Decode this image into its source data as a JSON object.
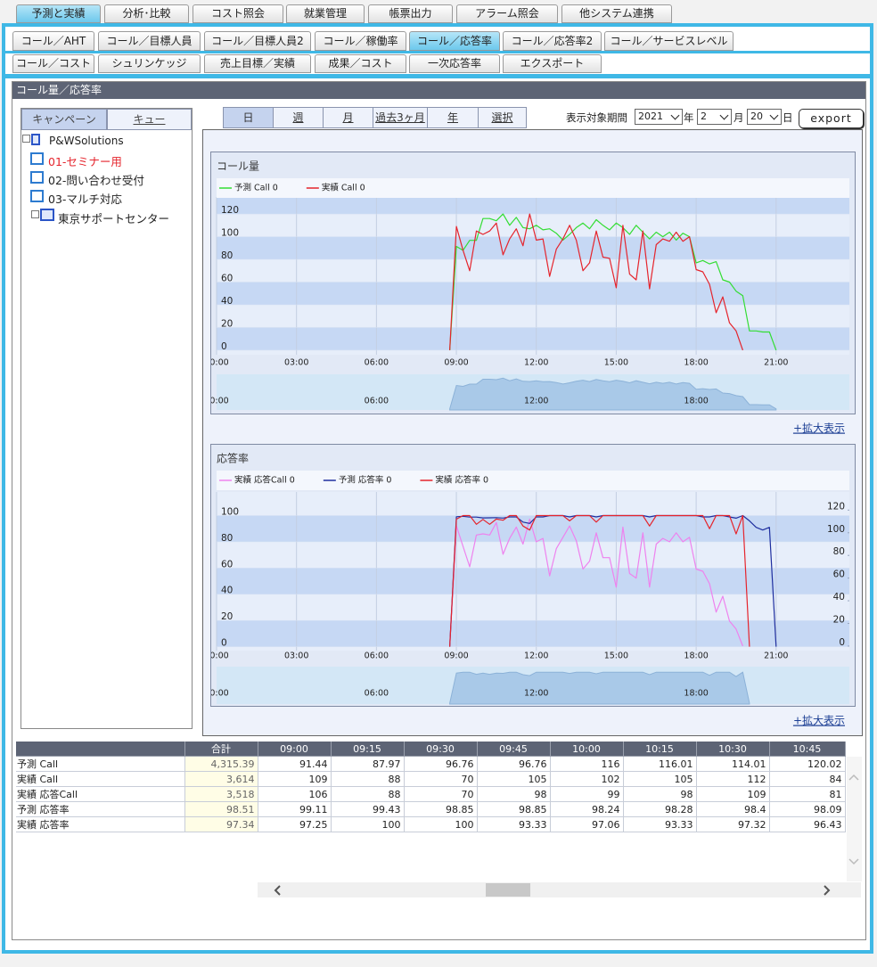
{
  "header": {
    "main_tabs": [
      "予測と実績",
      "分析･比較",
      "コスト照会",
      "就業管理",
      "帳票出力",
      "アラーム照会",
      "他システム連携"
    ],
    "sub_tabs": [
      "コール／AHT",
      "コール／目標人員",
      "コール／目標人員2",
      "コール／稼働率",
      "コール／応答率",
      "コール／応答率2",
      "コール／サービスレベル"
    ],
    "sub_tabs_2": [
      "コール／コスト",
      "シュリンケッジ",
      "売上目標／実績",
      "成果／コスト",
      "一次応答率",
      "エクスポート"
    ]
  },
  "panel": {
    "title": "コール量／応答率",
    "tree_tabs": [
      "キャンペーン",
      "キュー"
    ],
    "tree": {
      "root": "P&WSolutions",
      "items": [
        "01-セミナー用",
        "02-問い合わせ受付",
        "03-マルチ対応"
      ],
      "group": "東京サポートセンター"
    }
  },
  "period": {
    "tabs": [
      "日",
      "週",
      "月",
      "過去3ヶ月",
      "年",
      "選択"
    ],
    "label": "表示対象期間",
    "year": "2021",
    "year_unit": "年",
    "month": "2",
    "month_unit": "月",
    "day": "20",
    "day_unit": "日",
    "export": "export"
  },
  "chart_data": [
    {
      "type": "line",
      "title": "コール量",
      "link": "+拡大表示",
      "grid": true,
      "x": [
        8.75,
        9,
        9.25,
        9.5,
        9.75,
        10,
        10.25,
        10.5,
        10.75,
        11,
        11.25,
        11.5,
        11.75,
        12,
        12.25,
        12.5,
        12.75,
        13,
        13.25,
        13.5,
        13.75,
        14,
        14.25,
        14.5,
        14.75,
        15,
        15.25,
        15.5,
        15.75,
        16,
        16.25,
        16.5,
        16.75,
        17,
        17.25,
        17.5,
        17.75,
        18,
        18.25,
        18.5,
        18.75,
        19,
        19.25,
        19.5,
        19.75,
        20,
        20.25,
        20.5,
        20.75,
        21
      ],
      "xlim": [
        0,
        23.75
      ],
      "xticks": [
        {
          "value": 0,
          "label": "00:00"
        },
        {
          "value": 3,
          "label": "03:00"
        },
        {
          "value": 6,
          "label": "06:00"
        },
        {
          "value": 9,
          "label": "09:00"
        },
        {
          "value": 12,
          "label": "12:00"
        },
        {
          "value": 15,
          "label": "15:00"
        },
        {
          "value": 18,
          "label": "18:00"
        },
        {
          "value": 21,
          "label": "21:00"
        }
      ],
      "navigator_xticks": [
        {
          "value": 0,
          "label": "00:00"
        },
        {
          "value": 6,
          "label": "06:00"
        },
        {
          "value": 12,
          "label": "12:00"
        },
        {
          "value": 18,
          "label": "18:00"
        }
      ],
      "ylim": [
        -4,
        135
      ],
      "yticks": [
        0,
        20,
        40,
        60,
        80,
        100,
        120
      ],
      "series": [
        {
          "name": "予測 Call 0",
          "color": "#33dd33",
          "values": [
            0,
            91.44,
            87.97,
            96.76,
            96.76,
            116,
            116.01,
            114.01,
            120.02,
            110,
            117,
            108,
            107,
            110,
            106,
            107,
            103,
            97,
            102,
            108,
            112,
            107,
            115,
            110,
            106,
            112,
            108,
            102,
            110,
            104,
            98,
            104,
            100,
            104,
            97,
            103,
            100,
            77,
            79,
            76,
            78,
            62,
            60,
            52,
            48,
            17,
            17,
            16,
            16,
            0
          ]
        },
        {
          "name": "実績 Call 0",
          "color": "#e5242c",
          "values": [
            0,
            109,
            88,
            70,
            105,
            102,
            105,
            112,
            84,
            98,
            107,
            92,
            120,
            97,
            98,
            65,
            89,
            98,
            110,
            97,
            70,
            77,
            105,
            82,
            81,
            55,
            110,
            67,
            62,
            105,
            54,
            93,
            98,
            96,
            104,
            96,
            100,
            71,
            69,
            58,
            33,
            47,
            24,
            17,
            0,
            null,
            null,
            null,
            null,
            null
          ]
        }
      ]
    },
    {
      "type": "line",
      "title": "応答率",
      "link": "+拡大表示",
      "grid": true,
      "x": [
        8.75,
        9,
        9.25,
        9.5,
        9.75,
        10,
        10.25,
        10.5,
        10.75,
        11,
        11.25,
        11.5,
        11.75,
        12,
        12.25,
        12.5,
        12.75,
        13,
        13.25,
        13.5,
        13.75,
        14,
        14.25,
        14.5,
        14.75,
        15,
        15.25,
        15.5,
        15.75,
        16,
        16.25,
        16.5,
        16.75,
        17,
        17.25,
        17.5,
        17.75,
        18,
        18.25,
        18.5,
        18.75,
        19,
        19.25,
        19.5,
        19.75,
        20,
        20.25,
        20.5,
        20.75,
        21
      ],
      "xlim": [
        0,
        23.75
      ],
      "xticks": [
        {
          "value": 0,
          "label": "00:00"
        },
        {
          "value": 3,
          "label": "03:00"
        },
        {
          "value": 6,
          "label": "06:00"
        },
        {
          "value": 9,
          "label": "09:00"
        },
        {
          "value": 12,
          "label": "12:00"
        },
        {
          "value": 15,
          "label": "15:00"
        },
        {
          "value": 18,
          "label": "18:00"
        },
        {
          "value": 21,
          "label": "21:00"
        }
      ],
      "navigator_xticks": [
        {
          "value": 0,
          "label": "00:00"
        },
        {
          "value": 6,
          "label": "06:00"
        },
        {
          "value": 12,
          "label": "12:00"
        },
        {
          "value": 18,
          "label": "18:00"
        }
      ],
      "ylim": [
        -3,
        118
      ],
      "yticks": [
        0,
        20,
        40,
        60,
        80,
        100
      ],
      "y2lim": [
        -4,
        136
      ],
      "y2ticks": [
        0,
        20,
        40,
        60,
        80,
        100,
        120
      ],
      "series": [
        {
          "name": "実績 応答Call 0",
          "color": "#ee82ee",
          "axis": "y2",
          "values": [
            0,
            106,
            88,
            70,
            98,
            99,
            98,
            109,
            81,
            95,
            105,
            90,
            112,
            92,
            95,
            62,
            86,
            96,
            106,
            93,
            68,
            75,
            100,
            78,
            78,
            52,
            105,
            64,
            60,
            100,
            52,
            90,
            95,
            92,
            100,
            92,
            96,
            68,
            66,
            55,
            30,
            44,
            22,
            15,
            0,
            null,
            null,
            null,
            null,
            null
          ]
        },
        {
          "name": "予測 応答率 0",
          "color": "#1f2f9f",
          "values": [
            0,
            99.11,
            99.43,
            98.85,
            98.85,
            98.24,
            98.28,
            98.4,
            98.09,
            99,
            99,
            95,
            94,
            99,
            99,
            100,
            100,
            100,
            99,
            100,
            100,
            100,
            99,
            100,
            100,
            100,
            100,
            100,
            100,
            100,
            99,
            100,
            100,
            100,
            100,
            100,
            100,
            100,
            99,
            99,
            100,
            100,
            99,
            98,
            100,
            96,
            91,
            89,
            91,
            0
          ]
        },
        {
          "name": "実績 応答率 0",
          "color": "#e5242c",
          "values": [
            0,
            97.25,
            100,
            100,
            93.33,
            97.06,
            93.33,
            97.32,
            96.43,
            100,
            100,
            92,
            89,
            100,
            100,
            100,
            100,
            100,
            96,
            100,
            100,
            100,
            95,
            100,
            100,
            100,
            100,
            100,
            100,
            100,
            92,
            100,
            100,
            100,
            100,
            100,
            100,
            100,
            100,
            90,
            100,
            100,
            100,
            86,
            100,
            0,
            null,
            null,
            null,
            null
          ]
        }
      ]
    }
  ],
  "table": {
    "header": [
      "合計",
      "09:00",
      "09:15",
      "09:30",
      "09:45",
      "10:00",
      "10:15",
      "10:30",
      "10:45"
    ],
    "rows": [
      [
        "予測 Call",
        "4,315.39",
        "91.44",
        "87.97",
        "96.76",
        "96.76",
        "116",
        "116.01",
        "114.01",
        "120.02"
      ],
      [
        "実績 Call",
        "3,614",
        "109",
        "88",
        "70",
        "105",
        "102",
        "105",
        "112",
        "84"
      ],
      [
        "実績 応答Call",
        "3,518",
        "106",
        "88",
        "70",
        "98",
        "99",
        "98",
        "109",
        "81"
      ],
      [
        "予測 応答率",
        "98.51",
        "99.11",
        "99.43",
        "98.85",
        "98.85",
        "98.24",
        "98.28",
        "98.4",
        "98.09"
      ],
      [
        "実績 応答率",
        "97.34",
        "97.25",
        "100",
        "100",
        "93.33",
        "97.06",
        "93.33",
        "97.32",
        "96.43"
      ]
    ]
  }
}
